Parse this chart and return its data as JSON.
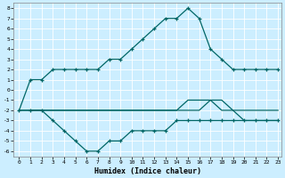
{
  "xlabel": "Humidex (Indice chaleur)",
  "bg_color": "#cceeff",
  "grid_color": "#ffffff",
  "line_color": "#006666",
  "xlim": [
    0,
    23
  ],
  "ylim": [
    -6.5,
    8.5
  ],
  "xticks": [
    0,
    1,
    2,
    3,
    4,
    5,
    6,
    7,
    8,
    9,
    10,
    11,
    12,
    13,
    14,
    15,
    16,
    17,
    18,
    19,
    20,
    21,
    22,
    23
  ],
  "yticks": [
    -6,
    -5,
    -4,
    -3,
    -2,
    -1,
    0,
    1,
    2,
    3,
    4,
    5,
    6,
    7,
    8
  ],
  "line1_x": [
    0,
    1,
    2,
    3,
    4,
    5,
    6,
    7,
    8,
    9,
    10,
    11,
    12,
    13,
    14,
    15,
    16,
    17,
    18,
    19,
    20,
    21,
    22,
    23
  ],
  "line1_y": [
    -2,
    1,
    1,
    2,
    2,
    2,
    2,
    2,
    3,
    3,
    4,
    5,
    6,
    7,
    7,
    8,
    7,
    4,
    3,
    2,
    2,
    2,
    2,
    2
  ],
  "line2_x": [
    1,
    2,
    3,
    4,
    5,
    6,
    7,
    8,
    9,
    10,
    11,
    12,
    13,
    14,
    15,
    16,
    17,
    18,
    19,
    20,
    21,
    22,
    23
  ],
  "line2_y": [
    -2,
    -2,
    -3,
    -4,
    -5,
    -6,
    -6,
    -5,
    -5,
    -4,
    -4,
    -4,
    -4,
    -3,
    -3,
    -3,
    -3,
    -3,
    -3,
    -3,
    -3,
    -3,
    -3
  ],
  "line3_x": [
    0,
    1,
    2,
    3,
    4,
    5,
    6,
    7,
    8,
    9,
    10,
    11,
    12,
    13,
    14,
    15,
    16,
    17,
    18,
    19,
    20,
    21,
    22,
    23
  ],
  "line3_y": [
    -2,
    -2,
    -2,
    -2,
    -2,
    -2,
    -2,
    -2,
    -2,
    -2,
    -2,
    -2,
    -2,
    -2,
    -2,
    -2,
    -2,
    -1,
    -1,
    -2,
    -2,
    -2,
    -2,
    -2
  ],
  "line4_x": [
    0,
    1,
    2,
    3,
    4,
    5,
    6,
    7,
    8,
    9,
    10,
    11,
    12,
    13,
    14,
    15,
    16,
    17,
    18,
    19,
    20,
    21,
    22,
    23
  ],
  "line4_y": [
    -2,
    -2,
    -2,
    -2,
    -2,
    -2,
    -2,
    -2,
    -2,
    -2,
    -2,
    -2,
    -2,
    -2,
    -2,
    -1,
    -1,
    -1,
    -2,
    -2,
    -3,
    -3,
    -3,
    -3
  ]
}
